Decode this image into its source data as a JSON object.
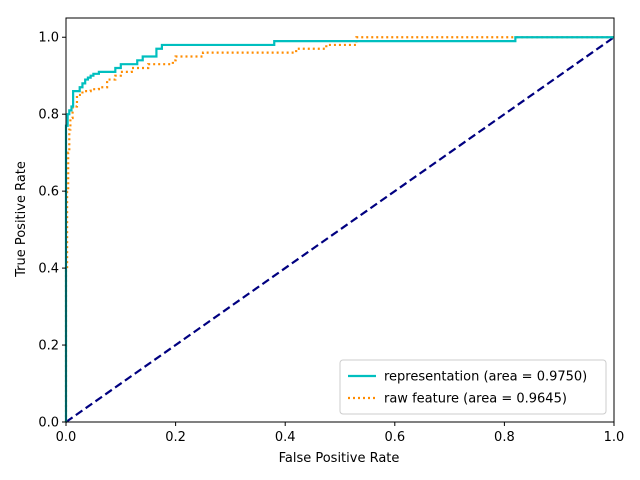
{
  "chart_data": {
    "type": "line",
    "title": "",
    "xlabel": "False Positive Rate",
    "ylabel": "True Positive Rate",
    "xlim": [
      0.0,
      1.0
    ],
    "ylim": [
      0.0,
      1.05
    ],
    "x_ticks": [
      0.0,
      0.2,
      0.4,
      0.6,
      0.8,
      1.0
    ],
    "x_tick_labels": [
      "0.0",
      "0.2",
      "0.4",
      "0.6",
      "0.8",
      "1.0"
    ],
    "y_ticks": [
      0.0,
      0.2,
      0.4,
      0.6,
      0.8,
      1.0
    ],
    "y_tick_labels": [
      "0.0",
      "0.2",
      "0.4",
      "0.6",
      "0.8",
      "1.0"
    ],
    "grid": false,
    "legend_position": "bottom-right",
    "series": [
      {
        "name": "representation (area = 0.9750)",
        "color": "#00bfbf",
        "style": "solid",
        "x": [
          0.0,
          0.0,
          0.003,
          0.003,
          0.006,
          0.006,
          0.01,
          0.01,
          0.013,
          0.013,
          0.025,
          0.025,
          0.03,
          0.03,
          0.035,
          0.035,
          0.04,
          0.04,
          0.045,
          0.045,
          0.05,
          0.05,
          0.06,
          0.06,
          0.09,
          0.09,
          0.1,
          0.1,
          0.13,
          0.13,
          0.14,
          0.14,
          0.165,
          0.165,
          0.175,
          0.175,
          0.38,
          0.38,
          0.82,
          0.82,
          1.0
        ],
        "y": [
          0.0,
          0.77,
          0.77,
          0.8,
          0.8,
          0.81,
          0.81,
          0.82,
          0.82,
          0.86,
          0.86,
          0.87,
          0.87,
          0.88,
          0.88,
          0.89,
          0.89,
          0.895,
          0.895,
          0.9,
          0.9,
          0.905,
          0.905,
          0.91,
          0.91,
          0.92,
          0.92,
          0.93,
          0.93,
          0.94,
          0.94,
          0.95,
          0.95,
          0.97,
          0.97,
          0.98,
          0.98,
          0.99,
          0.99,
          1.0,
          1.0
        ]
      },
      {
        "name": "raw feature (area = 0.9645)",
        "color": "#ff8c00",
        "style": "dotted",
        "x": [
          0.0,
          0.0,
          0.002,
          0.002,
          0.004,
          0.004,
          0.006,
          0.006,
          0.008,
          0.008,
          0.012,
          0.012,
          0.02,
          0.02,
          0.03,
          0.03,
          0.045,
          0.045,
          0.06,
          0.06,
          0.075,
          0.075,
          0.09,
          0.09,
          0.1,
          0.1,
          0.12,
          0.12,
          0.15,
          0.15,
          0.195,
          0.195,
          0.2,
          0.2,
          0.25,
          0.25,
          0.42,
          0.42,
          0.475,
          0.475,
          0.53,
          0.53,
          1.0
        ],
        "y": [
          0.0,
          0.4,
          0.4,
          0.6,
          0.6,
          0.7,
          0.7,
          0.76,
          0.76,
          0.79,
          0.79,
          0.82,
          0.82,
          0.85,
          0.85,
          0.86,
          0.86,
          0.865,
          0.865,
          0.87,
          0.87,
          0.89,
          0.89,
          0.9,
          0.9,
          0.91,
          0.91,
          0.92,
          0.92,
          0.93,
          0.93,
          0.94,
          0.94,
          0.95,
          0.95,
          0.96,
          0.96,
          0.97,
          0.97,
          0.98,
          0.98,
          1.0,
          1.0
        ]
      },
      {
        "name": "",
        "color": "#000080",
        "style": "dashed",
        "x": [
          0.0,
          1.0
        ],
        "y": [
          0.0,
          1.0
        ]
      }
    ]
  }
}
